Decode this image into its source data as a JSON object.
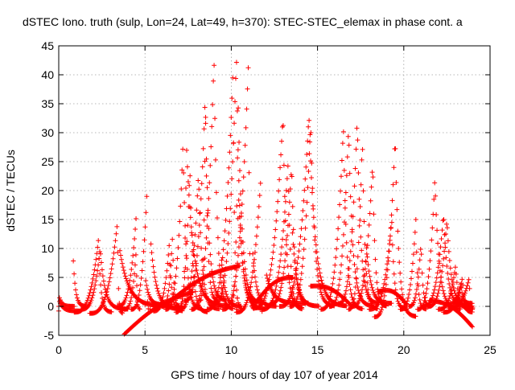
{
  "chart_data": {
    "type": "scatter",
    "title": "dSTEC Iono. truth (sulp, Lon=24, Lat=49, h=370): STEC-STEC_elemax in phase cont. a",
    "xlabel": "GPS time / hours of day 107 of year 2014",
    "ylabel": "dSTEC  / TECUs",
    "xlim": [
      0,
      25
    ],
    "ylim": [
      -5,
      45
    ],
    "xticks": [
      0,
      5,
      10,
      15,
      20,
      25
    ],
    "yticks": [
      -5,
      0,
      5,
      10,
      15,
      20,
      25,
      30,
      35,
      40,
      45
    ],
    "grid": true,
    "marker": "+",
    "color": "#ff0000",
    "arcs": [
      {
        "start": 0.0,
        "peak": 0.0,
        "end": 0.9,
        "peak_value": 2.0,
        "min": 0.0
      },
      {
        "start": 0.0,
        "peak": 0.0,
        "end": 1.3,
        "peak_value": 1.2,
        "min": -0.8
      },
      {
        "start": 0.8,
        "peak": 0.8,
        "end": 1.6,
        "peak_value": 11.0,
        "min": 0.0
      },
      {
        "start": 0.9,
        "peak": 2.3,
        "end": 3.1,
        "peak_value": 11.5,
        "min": -1.0
      },
      {
        "start": 1.3,
        "peak": 2.4,
        "end": 4.0,
        "peak_value": 10.0,
        "min": -0.5
      },
      {
        "start": 1.8,
        "peak": 3.4,
        "end": 3.7,
        "peak_value": 14.5,
        "min": -1.2
      },
      {
        "start": 3.4,
        "peak": 4.5,
        "end": 4.6,
        "peak_value": 16.0,
        "min": 0.0
      },
      {
        "start": 3.8,
        "peak": 4.5,
        "end": 4.7,
        "peak_value": 10.0,
        "min": -0.5
      },
      {
        "start": 4.2,
        "peak": 5.1,
        "end": 5.2,
        "peak_value": 19.0,
        "min": -0.5
      },
      {
        "start": 3.5,
        "peak": 3.5,
        "end": 6.6,
        "peak_value": 10.5,
        "min": 0.0
      },
      {
        "start": 5.0,
        "peak": 5.0,
        "end": 6.2,
        "peak_value": 5.5,
        "min": 0.3
      },
      {
        "start": 5.3,
        "peak": 5.3,
        "end": 7.2,
        "peak_value": 12.5,
        "min": -0.5
      },
      {
        "start": 5.5,
        "peak": 6.4,
        "end": 7.2,
        "peak_value": 10.5,
        "min": -0.8
      },
      {
        "start": 6.0,
        "peak": 6.6,
        "end": 7.0,
        "peak_value": 12.5,
        "min": 0.0
      },
      {
        "start": 6.2,
        "peak": 7.2,
        "end": 8.3,
        "peak_value": 28.0,
        "min": -0.5
      },
      {
        "start": 6.8,
        "peak": 7.6,
        "end": 8.6,
        "peak_value": 24.0,
        "min": -1.0
      },
      {
        "start": 7.0,
        "peak": 8.1,
        "end": 9.3,
        "peak_value": 23.0,
        "min": -0.5
      },
      {
        "start": 7.1,
        "peak": 7.4,
        "end": 9.8,
        "peak_value": 28.0,
        "min": 0.0
      },
      {
        "start": 7.3,
        "peak": 8.5,
        "end": 9.2,
        "peak_value": 37.0,
        "min": 1.0
      },
      {
        "start": 7.7,
        "peak": 9.0,
        "end": 10.1,
        "peak_value": 42.8,
        "min": -0.5
      },
      {
        "start": 8.2,
        "peak": 8.5,
        "end": 9.7,
        "peak_value": 34.0,
        "min": 1.0
      },
      {
        "start": 8.6,
        "peak": 10.1,
        "end": 10.6,
        "peak_value": 40.7,
        "min": -0.5
      },
      {
        "start": 9.0,
        "peak": 10.3,
        "end": 11.5,
        "peak_value": 43.2,
        "min": 0.5
      },
      {
        "start": 9.5,
        "peak": 11.0,
        "end": 11.3,
        "peak_value": 42.5,
        "min": -0.5
      },
      {
        "start": 10.0,
        "peak": 10.4,
        "end": 11.8,
        "peak_value": 35.0,
        "min": 0.5
      },
      {
        "start": 10.3,
        "peak": 10.4,
        "end": 12.0,
        "peak_value": 21.0,
        "min": -0.5
      },
      {
        "start": 10.3,
        "peak": 11.7,
        "end": 11.8,
        "peak_value": 21.5,
        "min": -1.0
      },
      {
        "start": 9.4,
        "peak": 9.4,
        "end": 10.6,
        "peak_value": 10.0,
        "min": 0.0
      },
      {
        "start": 11.2,
        "peak": 11.2,
        "end": 12.6,
        "peak_value": 11.0,
        "min": 0.0
      },
      {
        "start": 11.3,
        "peak": 13.0,
        "end": 14.1,
        "peak_value": 33.0,
        "min": -0.3
      },
      {
        "start": 11.8,
        "peak": 13.3,
        "end": 14.1,
        "peak_value": 25.0,
        "min": -0.5
      },
      {
        "start": 12.3,
        "peak": 13.5,
        "end": 14.5,
        "peak_value": 24.5,
        "min": 0.5
      },
      {
        "start": 12.8,
        "peak": 14.5,
        "end": 16.7,
        "peak_value": 33.0,
        "min": 0.0
      },
      {
        "start": 13.4,
        "peak": 14.6,
        "end": 16.0,
        "peak_value": 32.0,
        "min": 0.0
      },
      {
        "start": 12.0,
        "peak": 12.0,
        "end": 14.3,
        "peak_value": 6.0,
        "min": 0.5
      },
      {
        "start": 13.5,
        "peak": 13.5,
        "end": 15.1,
        "peak_value": 15.0,
        "min": 0.0
      },
      {
        "start": 15.2,
        "peak": 16.5,
        "end": 17.6,
        "peak_value": 31.0,
        "min": -0.5
      },
      {
        "start": 15.7,
        "peak": 16.8,
        "end": 18.2,
        "peak_value": 31.0,
        "min": 0.0
      },
      {
        "start": 16.2,
        "peak": 17.3,
        "end": 18.5,
        "peak_value": 32.5,
        "min": 0.5
      },
      {
        "start": 16.8,
        "peak": 17.6,
        "end": 18.5,
        "peak_value": 29.0,
        "min": -0.5
      },
      {
        "start": 17.0,
        "peak": 18.2,
        "end": 19.0,
        "peak_value": 25.0,
        "min": 0.0
      },
      {
        "start": 17.8,
        "peak": 17.8,
        "end": 19.3,
        "peak_value": 12.0,
        "min": 0.5
      },
      {
        "start": 18.0,
        "peak": 19.3,
        "end": 20.2,
        "peak_value": 15.0,
        "min": -0.5
      },
      {
        "start": 18.3,
        "peak": 19.5,
        "end": 20.7,
        "peak_value": 29.5,
        "min": -1.8
      },
      {
        "start": 19.8,
        "peak": 20.7,
        "end": 21.3,
        "peak_value": 15.0,
        "min": -0.5
      },
      {
        "start": 20.3,
        "peak": 21.0,
        "end": 21.6,
        "peak_value": 11.0,
        "min": 0.0
      },
      {
        "start": 20.8,
        "peak": 21.8,
        "end": 23.3,
        "peak_value": 22.0,
        "min": -0.5
      },
      {
        "start": 21.1,
        "peak": 22.3,
        "end": 23.7,
        "peak_value": 16.0,
        "min": 0.0
      },
      {
        "start": 21.4,
        "peak": 22.5,
        "end": 24.0,
        "peak_value": 15.0,
        "min": 0.0
      },
      {
        "start": 22.0,
        "peak": 23.0,
        "end": 24.0,
        "peak_value": 7.0,
        "min": -0.5
      },
      {
        "start": 22.3,
        "peak": 23.4,
        "end": 24.0,
        "peak_value": 5.0,
        "min": -1.0
      },
      {
        "start": 22.6,
        "peak": 23.8,
        "end": 24.0,
        "peak_value": 5.0,
        "min": -0.3
      },
      {
        "start": 22.7,
        "peak": 23.3,
        "end": 24.0,
        "peak_value": 4.0,
        "min": 0.5
      }
    ],
    "descending_tracks": [
      {
        "start": 3.8,
        "end": 7.8,
        "y_start": -4.8,
        "y_end": 2.5
      },
      {
        "start": 6.3,
        "end": 10.5,
        "y_start": 0.5,
        "y_end": 7.0
      },
      {
        "start": 11.5,
        "end": 13.6,
        "y_start": 1.0,
        "y_end": 5.0
      },
      {
        "start": 14.6,
        "end": 17.0,
        "y_start": 3.5,
        "y_end": 0.0
      },
      {
        "start": 18.5,
        "end": 20.2,
        "y_start": 2.5,
        "y_end": 0.2
      },
      {
        "start": 21.5,
        "end": 24.0,
        "y_start": 1.0,
        "y_end": -3.6
      }
    ]
  }
}
